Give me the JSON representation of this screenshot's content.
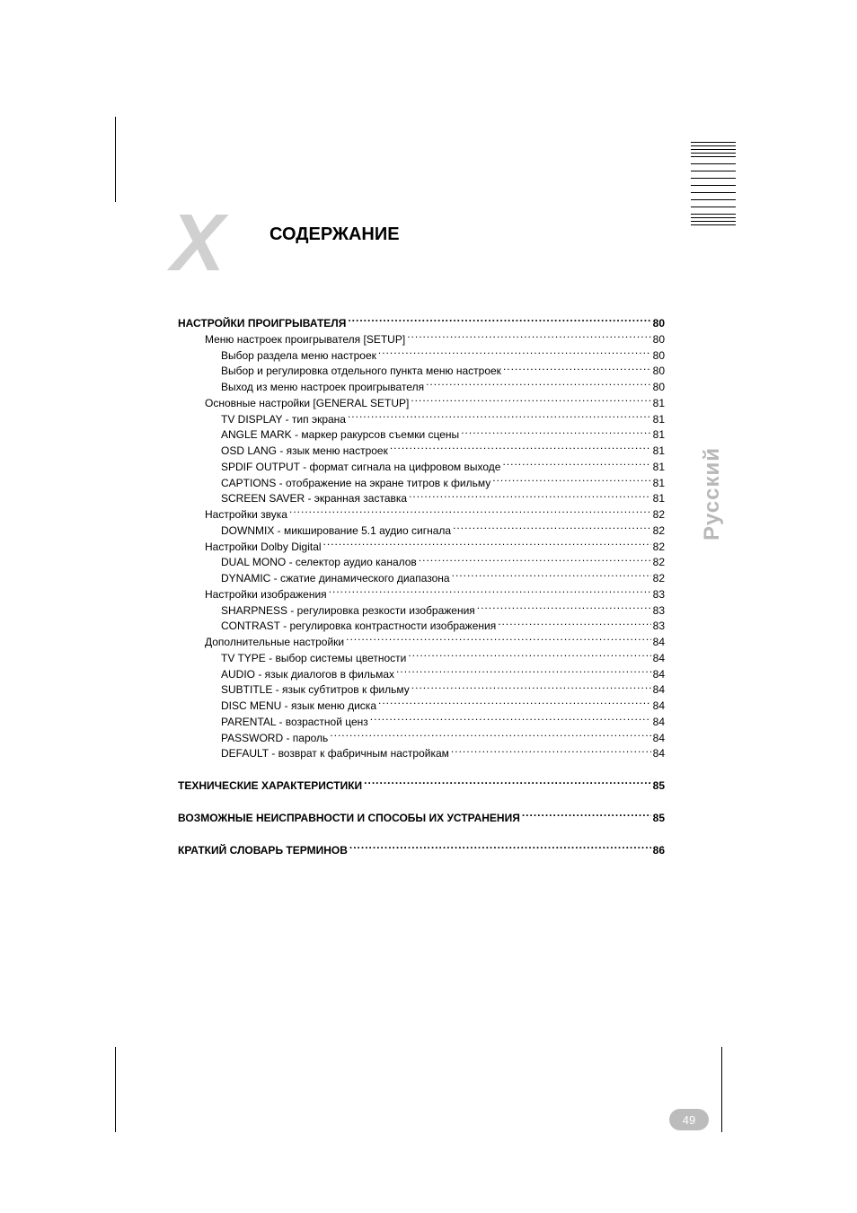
{
  "title": "СОДЕРЖАНИЕ",
  "side_tab": "Русский",
  "page_number": "49",
  "crop_lines_count": 16,
  "toc": [
    {
      "label": "НАСТРОЙКИ ПРОИГРЫВАТЕЛЯ",
      "page": "80",
      "level": 1,
      "bold": true
    },
    {
      "label": "Меню настроек проигрывателя [SETUP]",
      "page": "80",
      "level": 2
    },
    {
      "label": "Выбор раздела меню настроек",
      "page": "80",
      "level": 3
    },
    {
      "label": "Выбор и регулировка отдельного пункта меню настроек",
      "page": "80",
      "level": 3
    },
    {
      "label": "Выход из меню настроек проигрывателя",
      "page": "80",
      "level": 3
    },
    {
      "label": "Основные настройки [GENERAL SETUP]",
      "page": "81",
      "level": 2
    },
    {
      "label": "TV DISPLAY - тип экрана",
      "page": "81",
      "level": 3
    },
    {
      "label": "ANGLE MARK - маркер ракурсов съемки сцены",
      "page": "81",
      "level": 3
    },
    {
      "label": "OSD LANG - язык меню настроек",
      "page": "81",
      "level": 3
    },
    {
      "label": "SPDIF OUTPUT - формат сигнала на цифровом выходе",
      "page": "81",
      "level": 3
    },
    {
      "label": "CAPTIONS - отображение на экране титров к фильму",
      "page": "81",
      "level": 3
    },
    {
      "label": "SCREEN SAVER - экранная заставка",
      "page": "81",
      "level": 3
    },
    {
      "label": "Настройки звука",
      "page": "82",
      "level": 2
    },
    {
      "label": "DOWNMIX - микширование 5.1 аудио сигнала",
      "page": "82",
      "level": 3
    },
    {
      "label": "Настройки Dolby Digital",
      "page": "82",
      "level": 2
    },
    {
      "label": "DUAL MONO - селектор аудио каналов",
      "page": "82",
      "level": 3
    },
    {
      "label": "DYNAMIC - сжатие динамического диапазона",
      "page": "82",
      "level": 3
    },
    {
      "label": "Настройки изображения",
      "page": "83",
      "level": 2
    },
    {
      "label": "SHARPNESS - регулировка резкости изображения",
      "page": "83",
      "level": 3
    },
    {
      "label": "CONTRAST - регулировка контрастности изображения",
      "page": "83",
      "level": 3
    },
    {
      "label": "Дополнительные настройки",
      "page": "84",
      "level": 2
    },
    {
      "label": "TV TYPE - выбор системы цветности",
      "page": "84",
      "level": 3
    },
    {
      "label": "AUDIO - язык диалогов в фильмах",
      "page": "84",
      "level": 3
    },
    {
      "label": "SUBTITLE - язык субтитров к фильму",
      "page": "84",
      "level": 3
    },
    {
      "label": "DISC MENU - язык меню диска",
      "page": "84",
      "level": 3
    },
    {
      "label": "PARENTAL - возрастной ценз",
      "page": "84",
      "level": 3
    },
    {
      "label": "PASSWORD - пароль",
      "page": "84",
      "level": 3
    },
    {
      "label": "DEFAULT - возврат к фабричным настройкам",
      "page": "84",
      "level": 3
    },
    {
      "gap": true
    },
    {
      "label": "ТЕХНИЧЕСКИЕ ХАРАКТЕРИСТИКИ",
      "page": "85",
      "level": 1,
      "bold": true
    },
    {
      "gap": true
    },
    {
      "label": "ВОЗМОЖНЫЕ НЕИСПРАВНОСТИ И СПОСОБЫ ИХ УСТРАНЕНИЯ",
      "page": "85",
      "level": 1,
      "bold": true
    },
    {
      "gap": true
    },
    {
      "label": "КРАТКИЙ СЛОВАРЬ ТЕРМИНОВ",
      "page": "86",
      "level": 1,
      "bold": true
    }
  ]
}
